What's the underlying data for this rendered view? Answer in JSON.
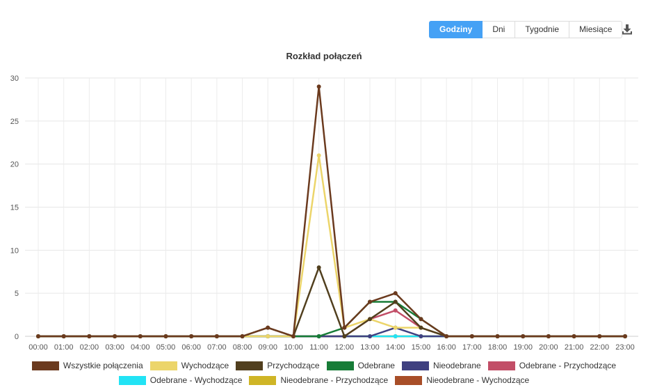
{
  "toolbar": {
    "buttons": [
      "Godziny",
      "Dni",
      "Tygodnie",
      "Miesiące"
    ],
    "active": "Godziny"
  },
  "icons": {
    "download": "download-icon"
  },
  "chart_data": {
    "type": "line",
    "title": "Rozkład połączeń",
    "xlabel": "",
    "ylabel": "",
    "ylim": [
      0,
      30
    ],
    "yticks": [
      0,
      5,
      10,
      15,
      20,
      25,
      30
    ],
    "grid": true,
    "legend_position": "bottom",
    "categories": [
      "00:00",
      "01:00",
      "02:00",
      "03:00",
      "04:00",
      "05:00",
      "06:00",
      "07:00",
      "08:00",
      "09:00",
      "10:00",
      "11:00",
      "12:00",
      "13:00",
      "14:00",
      "15:00",
      "16:00",
      "17:00",
      "18:00",
      "19:00",
      "20:00",
      "21:00",
      "22:00",
      "23:00"
    ],
    "series": [
      {
        "name": "Wszystkie połączenia",
        "color": "#6b3a1e",
        "values": [
          0,
          0,
          0,
          0,
          0,
          0,
          0,
          0,
          0,
          1,
          0,
          29,
          1,
          4,
          5,
          2,
          0,
          0,
          0,
          0,
          0,
          0,
          0,
          0
        ]
      },
      {
        "name": "Wychodzące",
        "color": "#ecd56a",
        "values": [
          0,
          0,
          0,
          0,
          0,
          0,
          0,
          0,
          0,
          0,
          0,
          21,
          1,
          2,
          1,
          1,
          0,
          0,
          0,
          0,
          0,
          0,
          0,
          0
        ]
      },
      {
        "name": "Przychodzące",
        "color": "#513f1e",
        "values": [
          0,
          0,
          0,
          0,
          0,
          0,
          0,
          0,
          0,
          1,
          0,
          8,
          0,
          2,
          4,
          1,
          0,
          0,
          0,
          0,
          0,
          0,
          0,
          0
        ]
      },
      {
        "name": "Odebrane",
        "color": "#177c37",
        "values": [
          0,
          0,
          0,
          0,
          0,
          0,
          0,
          0,
          0,
          0,
          0,
          0,
          1,
          4,
          4,
          2,
          0,
          0,
          0,
          0,
          0,
          0,
          0,
          0
        ]
      },
      {
        "name": "Nieodebrane",
        "color": "#3f4080",
        "values": [
          0,
          0,
          0,
          0,
          0,
          0,
          0,
          0,
          0,
          0,
          0,
          0,
          0,
          0,
          1,
          0,
          0,
          0,
          0,
          0,
          0,
          0,
          0,
          0
        ]
      },
      {
        "name": "Odebrane - Przychodzące",
        "color": "#c24e67",
        "values": [
          0,
          0,
          0,
          0,
          0,
          0,
          0,
          0,
          0,
          0,
          0,
          0,
          0,
          2,
          3,
          1,
          0,
          0,
          0,
          0,
          0,
          0,
          0,
          0
        ]
      },
      {
        "name": "Odebrane - Wychodzące",
        "color": "#22e3f5",
        "values": [
          0,
          0,
          0,
          0,
          0,
          0,
          0,
          0,
          0,
          0,
          0,
          0,
          0,
          0,
          0,
          0,
          0,
          0,
          0,
          0,
          0,
          0,
          0,
          0
        ]
      },
      {
        "name": "Nieodebrane - Przychodzące",
        "color": "#cfb526",
        "values": [
          0,
          0,
          0,
          0,
          0,
          0,
          0,
          0,
          0,
          0,
          0,
          0,
          0,
          0,
          0,
          0,
          0,
          0,
          0,
          0,
          0,
          0,
          0,
          0
        ]
      },
      {
        "name": "Nieodebrane - Wychodzące",
        "color": "#a84e28",
        "values": [
          0,
          0,
          0,
          0,
          0,
          0,
          0,
          0,
          0,
          0,
          0,
          0,
          0,
          0,
          0,
          0,
          0,
          0,
          0,
          0,
          0,
          0,
          0,
          0
        ]
      }
    ]
  }
}
